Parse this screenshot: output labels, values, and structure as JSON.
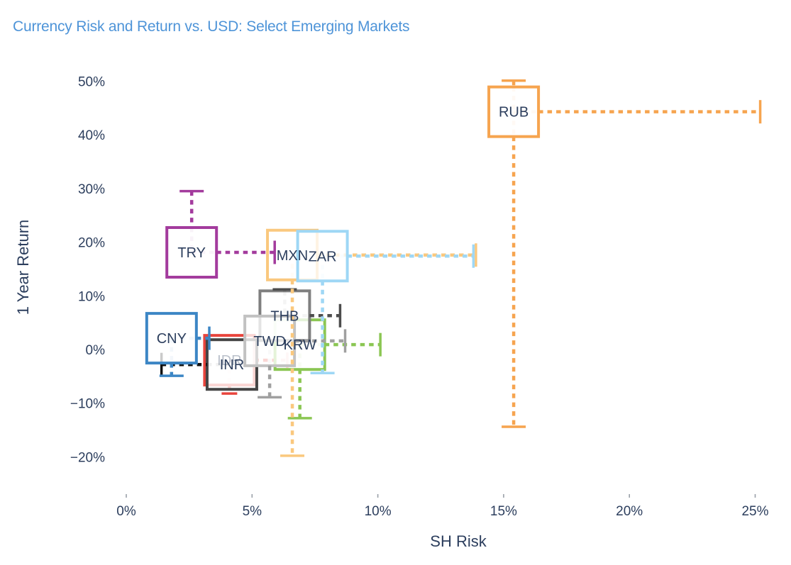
{
  "chart_data": {
    "type": "scatter",
    "title": "Currency Risk and Return vs. USD: Select Emerging  Markets",
    "xlabel": "SH Risk",
    "ylabel": "1 Year Return",
    "title_color": "#4E94D8",
    "axis_text_color": "#2C3E5D",
    "background": "#FFFFFF",
    "grid": "off",
    "legend": "none",
    "xlim": [
      0,
      25
    ],
    "ylim": [
      -20,
      50
    ],
    "x_ticks": [
      {
        "value": 0,
        "label": "0%"
      },
      {
        "value": 5,
        "label": "5%"
      },
      {
        "value": 10,
        "label": "10%"
      },
      {
        "value": 15,
        "label": "15%"
      },
      {
        "value": 20,
        "label": "20%"
      },
      {
        "value": 25,
        "label": "25%"
      }
    ],
    "y_ticks": [
      {
        "value": 50,
        "label": "50%"
      },
      {
        "value": 40,
        "label": "40%"
      },
      {
        "value": 30,
        "label": "30%"
      },
      {
        "value": 20,
        "label": "20%"
      },
      {
        "value": 10,
        "label": "10%"
      },
      {
        "value": 0,
        "label": "0%"
      },
      {
        "value": -10,
        "label": "−10%"
      },
      {
        "value": -20,
        "label": "−20%"
      }
    ],
    "series": [
      {
        "label": "IDR",
        "color": "#E8443C",
        "risk": 4.1,
        "return": -2.0,
        "risk_hi": 6.4,
        "ret_lo": -8.2,
        "label_faint": true,
        "cap": 22
      },
      {
        "label": "KRW",
        "color": "#8BC653",
        "risk": 6.9,
        "return": 0.9,
        "risk_hi": 10.1,
        "ret_lo": -12.8
      },
      {
        "label": "THB",
        "color": "#7F7F7F",
        "whisker_color": "#4D4D4D",
        "risk": 6.3,
        "return": 6.3,
        "risk_hi": 8.5,
        "ret_hi": 11.2
      },
      {
        "label": "INR",
        "color": "#454545",
        "whisker_color": "#111111",
        "risk": 4.2,
        "return": -2.8,
        "risk_lo": 1.4
      },
      {
        "label": "TWD",
        "color": "#C2C2C2",
        "whisker_color": "#A0A0A0",
        "risk": 5.7,
        "return": 1.6,
        "risk_hi": 8.7,
        "ret_lo": -8.9
      },
      {
        "label": "CNY",
        "color": "#3C86C5",
        "risk": 1.8,
        "return": 2.1,
        "risk_hi": 3.3,
        "ret_lo": -4.9
      },
      {
        "label": "MXN",
        "color": "#FAC87E",
        "risk": 6.6,
        "return": 17.6,
        "risk_hi": 13.9,
        "ret_lo": -19.8
      },
      {
        "label": "ZAR",
        "color": "#9ED7F5",
        "risk": 7.8,
        "return": 17.4,
        "risk_hi": 13.8,
        "ret_lo": -4.4
      },
      {
        "label": "TRY",
        "color": "#A33B9D",
        "risk": 2.6,
        "return": 18.1,
        "risk_hi": 5.9,
        "ret_hi": 29.5
      },
      {
        "label": "RUB",
        "color": "#F6A44F",
        "risk": 15.4,
        "return": 44.3,
        "risk_hi": 25.2,
        "ret_hi": 50.1,
        "ret_lo": -14.4
      }
    ]
  }
}
